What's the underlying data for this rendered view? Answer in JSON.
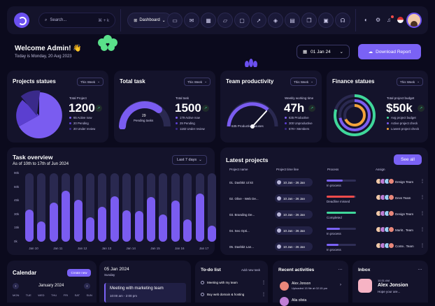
{
  "topbar": {
    "search_placeholder": "Search...",
    "search_shortcut": "⌘ + k",
    "dashboard_label": "Dashboard"
  },
  "header": {
    "welcome": "Welcome Admin! 👋",
    "today": "Today is Monday, 20 Aug 2023",
    "date_button": "01 Jan 24",
    "download_button": "Download Report"
  },
  "projects": {
    "title": "Projects statues",
    "period": "This Week",
    "total_label": "Total Project",
    "total_value": "1200",
    "legend": [
      "65 Active now",
      "20 Pending",
      "20 Under review"
    ],
    "chart_data": {
      "type": "pie",
      "slices": [
        {
          "label": "Active now",
          "value": 65
        },
        {
          "label": "Pending",
          "value": 20
        },
        {
          "label": "Under review",
          "value": 20
        }
      ]
    }
  },
  "tasks": {
    "title": "Total task",
    "gauge_value": "29",
    "gauge_label": "Pending tasks",
    "total_label": "Total task",
    "total_value": "1500",
    "legend": [
      "179 Active now",
      "29 Pending",
      "1182 Under review"
    ]
  },
  "team": {
    "title": "Team productivity",
    "period": "This Week",
    "gauge_label": "635 Productive houses",
    "weekly_label": "Weekly working time",
    "weekly_value": "47h",
    "legend": [
      "635 Productive",
      "300 Unproductive",
      "67K+ Members"
    ]
  },
  "finance": {
    "title": "Finance statues",
    "period": "This Week",
    "budget_label": "Total project budget",
    "budget_value": "$50k",
    "legend": [
      "Avg project budget",
      "Active project check",
      "Lowest project check"
    ]
  },
  "task_overview": {
    "title": "Task overview",
    "subtitle": "As of 10th to 17th of Jun 2024",
    "period": "Last 7 days",
    "chart_data": {
      "type": "bar",
      "title": "Task overview",
      "y_ticks": [
        "90k",
        "60k",
        "45k",
        "30k",
        "15k",
        "0k"
      ],
      "ylim": [
        0,
        90
      ],
      "x_ticks": [
        "Jan 10",
        "Jan 11",
        "Jan 12",
        "Jan 13",
        "Jan 14",
        "Jan 15",
        "Jan 16",
        "Jan 17"
      ],
      "values": [
        42,
        27,
        51,
        67,
        55,
        32,
        46,
        60,
        41,
        40,
        59,
        36,
        54,
        29,
        63,
        21
      ]
    }
  },
  "latest_projects": {
    "title": "Latest projects",
    "see_all": "See all",
    "columns": [
      "Project name",
      "Project time line",
      "Process",
      "Assign"
    ],
    "rows": [
      {
        "name": "01. Dashkit Ui kit",
        "date": "10 Jan - 26 Jan",
        "status": "In process",
        "team": "Design Team",
        "progress": 0.55,
        "color": "#7a62f5"
      },
      {
        "name": "02. Olive - Web De...",
        "date": "10 Jan - 26 Jan",
        "status": "Deadline missed",
        "team": "Devs Team",
        "progress": 0.95,
        "color": "#ef4b4b"
      },
      {
        "name": "03. Branding De...",
        "date": "10 Jan - 26 Jan",
        "status": "Completed",
        "team": "Design Team",
        "progress": 1.0,
        "color": "#3fd79a"
      },
      {
        "name": "04. Seo Opti...",
        "date": "10 Jan - 26 Jan",
        "status": "In process",
        "team": "Markt.. Team",
        "progress": 0.45,
        "color": "#7a62f5"
      },
      {
        "name": "05. Dashkit Lan...",
        "date": "10 Jan - 26 Jan",
        "status": "In process",
        "team": "Conte.. Team",
        "progress": 0.4,
        "color": "#7a62f5"
      }
    ]
  },
  "calendar": {
    "title": "Calendar",
    "create_button": "Create new",
    "month": "January 2024",
    "weekdays": [
      "MON",
      "TUE",
      "WED",
      "THU",
      "FRI",
      "SAT",
      "SUN"
    ],
    "date": "05 Jan 2024",
    "day": "Sunday",
    "event_title": "Meeting with marketing team",
    "event_time": "10:00 am - 2:00 pm"
  },
  "todo": {
    "title": "To-do list",
    "add": "Add new task",
    "items": [
      "Meeting with my team",
      "Buy web domain & hosting"
    ]
  },
  "activities": {
    "title": "Recent activities",
    "items": [
      {
        "name": "Alex Jonson",
        "text": "Uploaded 15 file at 02:15 pm"
      },
      {
        "name": "Alia olivia",
        "text": ""
      }
    ]
  },
  "inbox": {
    "title": "Inbox",
    "time": "10:31 AM",
    "name": "Alex Jonsion",
    "text": "Hope your are..."
  }
}
